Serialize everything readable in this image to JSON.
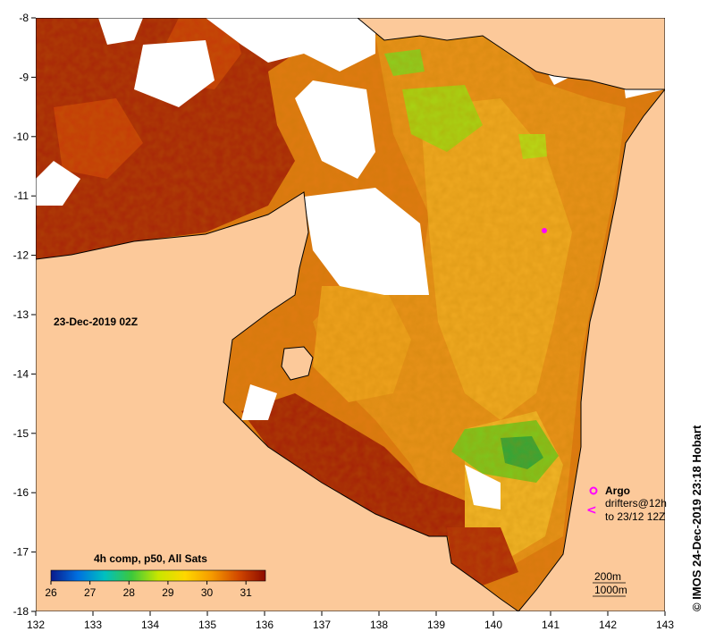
{
  "map": {
    "date_label": "23-Dec-2019 02Z",
    "composite_label": "4h comp, p50, All Sats",
    "credit": "© IMOS 24-Dec-2019 23:18 Hobart",
    "colors": {
      "land": "#fcc99a",
      "cloud": "#ffffff",
      "coast": "#000000",
      "argo": "#ff00ff"
    },
    "axes": {
      "lon_ticks": [
        "132",
        "133",
        "134",
        "135",
        "136",
        "137",
        "138",
        "139",
        "140",
        "141",
        "142",
        "143"
      ],
      "lat_ticks": [
        "-8",
        "-9",
        "-10",
        "-11",
        "-12",
        "-13",
        "-14",
        "-15",
        "-16",
        "-17",
        "-18"
      ]
    },
    "colorbar": {
      "ticks": [
        "26",
        "27",
        "28",
        "29",
        "30",
        "31"
      ],
      "min": 26,
      "max": 31.5,
      "stops": [
        "#0a1a8c",
        "#0070e0",
        "#00c0c0",
        "#3cc83c",
        "#c8e600",
        "#ffd700",
        "#f59a00",
        "#d24800",
        "#8c0a00"
      ]
    },
    "legend": {
      "argo_label": "Argo",
      "drifters_label": "drifters@12h",
      "drifters_range": "to 23/12 12Z",
      "contour_200": "200m",
      "contour_1000": "1000m"
    }
  }
}
